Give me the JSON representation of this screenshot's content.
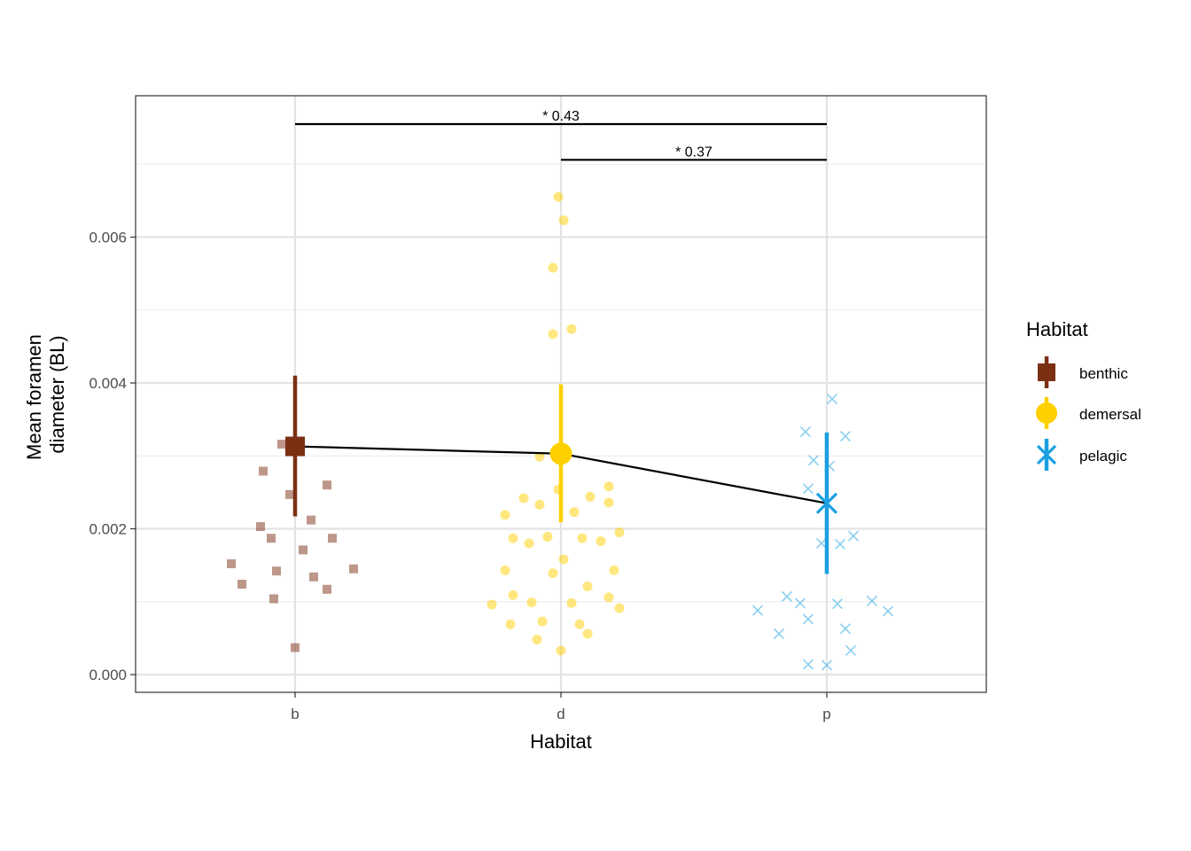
{
  "chart_data": {
    "type": "scatter",
    "title": "",
    "xlabel": "Habitat",
    "ylabel_lines": [
      "Mean foramen",
      "diameter (BL)"
    ],
    "categories": [
      "b",
      "d",
      "p"
    ],
    "ylim": [
      -0.00025,
      0.0079
    ],
    "yticks": [
      "0.000",
      "0.002",
      "0.004",
      "0.006"
    ],
    "ytick_values": [
      0,
      0.002,
      0.004,
      0.006
    ],
    "grid": true,
    "legend": {
      "title": "Habitat",
      "position": "right",
      "entries": [
        {
          "label": "benthic",
          "shape": "square",
          "color": "#7B3014"
        },
        {
          "label": "demersal",
          "shape": "circle",
          "color": "#FFD000"
        },
        {
          "label": "pelagic",
          "shape": "cross",
          "color": "#1A9FE2"
        }
      ]
    },
    "series": [
      {
        "name": "benthic",
        "category": "b",
        "shape": "square",
        "color": "#7B3014",
        "mean": 0.00313,
        "ci": [
          0.00217,
          0.0041
        ],
        "points": [
          {
            "x": -0.05,
            "y": 0.00316
          },
          {
            "x": -0.12,
            "y": 0.00279
          },
          {
            "x": -0.02,
            "y": 0.00247
          },
          {
            "x": 0.12,
            "y": 0.0026
          },
          {
            "x": 0.06,
            "y": 0.00212
          },
          {
            "x": -0.13,
            "y": 0.00203
          },
          {
            "x": -0.09,
            "y": 0.00187
          },
          {
            "x": 0.14,
            "y": 0.00187
          },
          {
            "x": 0.03,
            "y": 0.00171
          },
          {
            "x": -0.24,
            "y": 0.00152
          },
          {
            "x": 0.22,
            "y": 0.00145
          },
          {
            "x": -0.07,
            "y": 0.00142
          },
          {
            "x": 0.07,
            "y": 0.00134
          },
          {
            "x": -0.2,
            "y": 0.00124
          },
          {
            "x": 0.12,
            "y": 0.00117
          },
          {
            "x": -0.08,
            "y": 0.00104
          },
          {
            "x": 0.0,
            "y": 0.00037
          }
        ]
      },
      {
        "name": "demersal",
        "category": "d",
        "shape": "circle",
        "color": "#FFD000",
        "mean": 0.00303,
        "ci": [
          0.00209,
          0.00398
        ],
        "points": [
          {
            "x": -0.01,
            "y": 0.00655
          },
          {
            "x": 0.01,
            "y": 0.00623
          },
          {
            "x": -0.03,
            "y": 0.00558
          },
          {
            "x": 0.04,
            "y": 0.00474
          },
          {
            "x": -0.03,
            "y": 0.00467
          },
          {
            "x": -0.08,
            "y": 0.00299
          },
          {
            "x": -0.01,
            "y": 0.00254
          },
          {
            "x": 0.18,
            "y": 0.00258
          },
          {
            "x": -0.14,
            "y": 0.00242
          },
          {
            "x": 0.11,
            "y": 0.00244
          },
          {
            "x": -0.08,
            "y": 0.00233
          },
          {
            "x": 0.18,
            "y": 0.00236
          },
          {
            "x": -0.21,
            "y": 0.00219
          },
          {
            "x": 0.05,
            "y": 0.00223
          },
          {
            "x": 0.22,
            "y": 0.00195
          },
          {
            "x": -0.18,
            "y": 0.00187
          },
          {
            "x": -0.05,
            "y": 0.00189
          },
          {
            "x": 0.08,
            "y": 0.00187
          },
          {
            "x": -0.12,
            "y": 0.0018
          },
          {
            "x": 0.15,
            "y": 0.00183
          },
          {
            "x": 0.01,
            "y": 0.00158
          },
          {
            "x": -0.21,
            "y": 0.00143
          },
          {
            "x": -0.03,
            "y": 0.00139
          },
          {
            "x": 0.2,
            "y": 0.00143
          },
          {
            "x": 0.1,
            "y": 0.00121
          },
          {
            "x": -0.18,
            "y": 0.00109
          },
          {
            "x": 0.18,
            "y": 0.00106
          },
          {
            "x": -0.26,
            "y": 0.00096
          },
          {
            "x": -0.11,
            "y": 0.00099
          },
          {
            "x": 0.04,
            "y": 0.00098
          },
          {
            "x": 0.22,
            "y": 0.00091
          },
          {
            "x": -0.07,
            "y": 0.00073
          },
          {
            "x": -0.19,
            "y": 0.00069
          },
          {
            "x": 0.07,
            "y": 0.00069
          },
          {
            "x": 0.1,
            "y": 0.00056
          },
          {
            "x": -0.09,
            "y": 0.00048
          },
          {
            "x": 0.0,
            "y": 0.00033
          }
        ]
      },
      {
        "name": "pelagic",
        "category": "p",
        "shape": "cross",
        "color": "#1A9FE2",
        "mean": 0.00235,
        "ci": [
          0.00138,
          0.00332
        ],
        "points": [
          {
            "x": 0.02,
            "y": 0.00378
          },
          {
            "x": -0.08,
            "y": 0.00333
          },
          {
            "x": 0.07,
            "y": 0.00327
          },
          {
            "x": -0.05,
            "y": 0.00294
          },
          {
            "x": 0.01,
            "y": 0.00286
          },
          {
            "x": -0.07,
            "y": 0.00255
          },
          {
            "x": 0.1,
            "y": 0.0019
          },
          {
            "x": -0.02,
            "y": 0.0018
          },
          {
            "x": 0.05,
            "y": 0.00179
          },
          {
            "x": -0.15,
            "y": 0.00107
          },
          {
            "x": 0.17,
            "y": 0.00101
          },
          {
            "x": -0.1,
            "y": 0.00098
          },
          {
            "x": 0.04,
            "y": 0.00097
          },
          {
            "x": -0.26,
            "y": 0.00088
          },
          {
            "x": 0.23,
            "y": 0.00087
          },
          {
            "x": -0.07,
            "y": 0.00076
          },
          {
            "x": 0.07,
            "y": 0.00063
          },
          {
            "x": -0.18,
            "y": 0.00056
          },
          {
            "x": 0.09,
            "y": 0.00033
          },
          {
            "x": -0.07,
            "y": 0.00014
          },
          {
            "x": 0.0,
            "y": 0.00013
          }
        ]
      }
    ],
    "comparisons": [
      {
        "from": "b",
        "to": "p",
        "label": "* 0.43",
        "y": 0.00755
      },
      {
        "from": "d",
        "to": "p",
        "label": "* 0.37",
        "y": 0.00706
      }
    ]
  }
}
